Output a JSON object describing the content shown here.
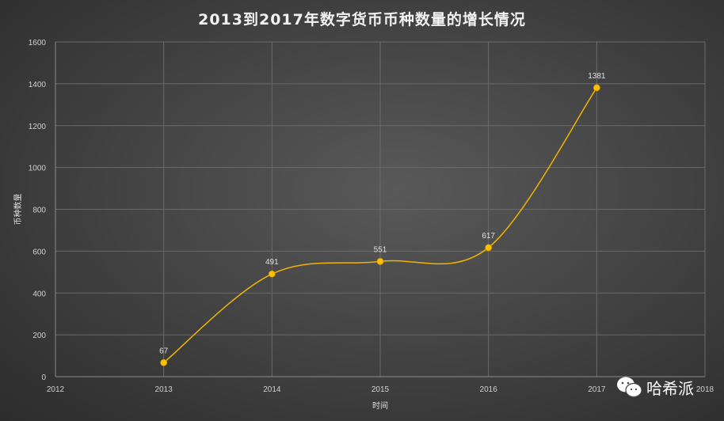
{
  "chart_data": {
    "type": "line",
    "title": "2013到2017年数字货币币种数量的增长情况",
    "xlabel": "时间",
    "ylabel": "币种数量",
    "x": [
      2013,
      2014,
      2015,
      2016,
      2017
    ],
    "values": [
      67,
      491,
      551,
      617,
      1381
    ],
    "data_labels": [
      "67",
      "491",
      "551",
      "617",
      "1381"
    ],
    "xlim": [
      2012,
      2018
    ],
    "ylim": [
      0,
      1600
    ],
    "x_ticks": [
      "2012",
      "2013",
      "2014",
      "2015",
      "2016",
      "2017",
      "2018"
    ],
    "y_ticks": [
      "0",
      "200",
      "400",
      "600",
      "800",
      "1000",
      "1200",
      "1400",
      "1600"
    ],
    "smooth": true,
    "grid": true,
    "line_color": "#f0b400",
    "marker_color": "#ffc000"
  },
  "watermark": {
    "text": "哈希派",
    "icon": "wechat-icon"
  }
}
